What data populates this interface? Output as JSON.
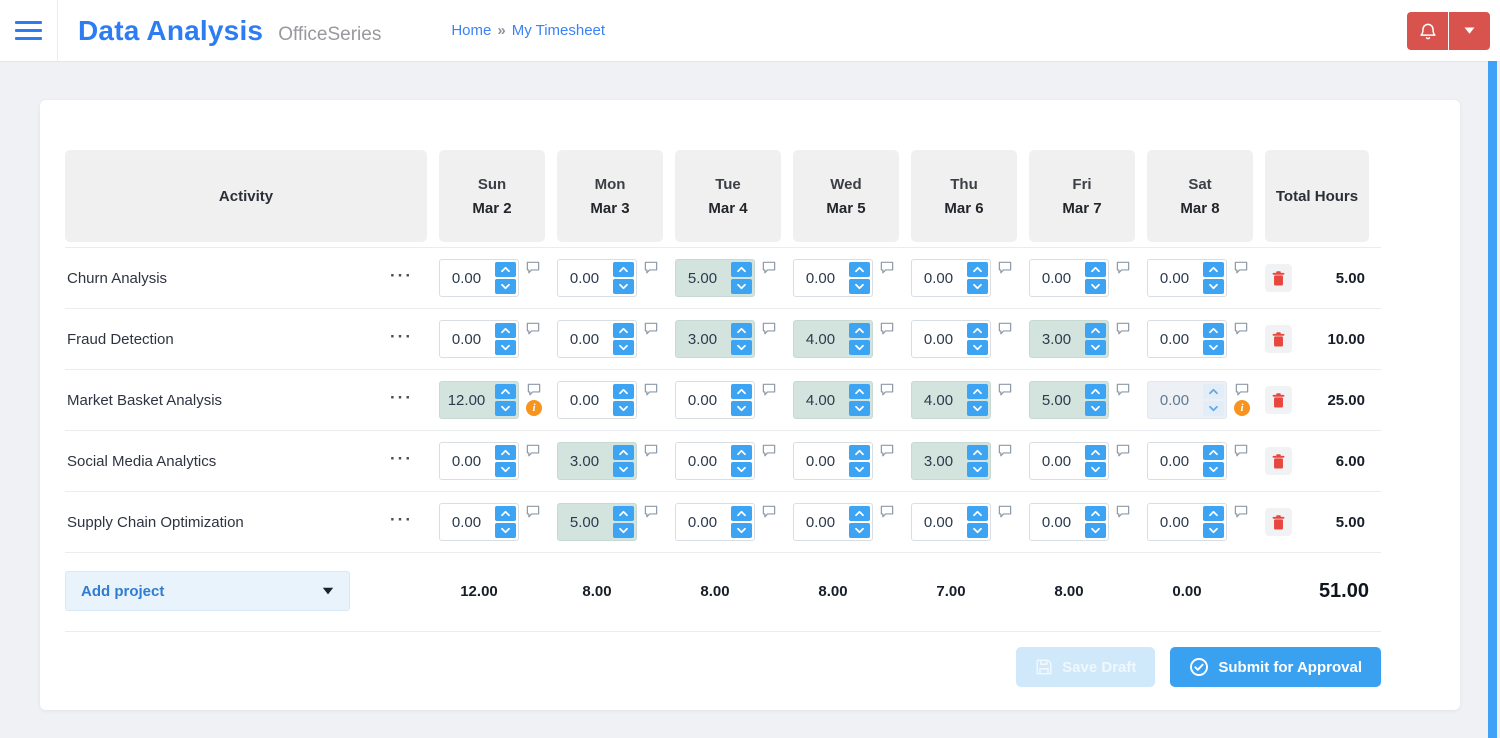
{
  "header": {
    "app_title": "Data Analysis",
    "suite_name": "OfficeSeries",
    "breadcrumb": {
      "home": "Home",
      "separator": "»",
      "current": "My Timesheet"
    }
  },
  "icons": {
    "menu": "hamburger-icon",
    "notifications": "bell-icon",
    "account_dropdown": "caret-down-icon",
    "spinner_up": "chevron-up-icon",
    "spinner_down": "chevron-down-icon",
    "comment": "speech-bubble-icon",
    "warning": "info-circle-icon",
    "delete": "trash-icon",
    "save": "floppy-disk-icon",
    "submit": "check-circle-icon"
  },
  "glyphs": {
    "row_menu": "···",
    "warning": "i"
  },
  "table": {
    "columns": {
      "activity": "Activity",
      "total": "Total Hours"
    },
    "days": [
      {
        "name": "Sun",
        "date": "Mar 2"
      },
      {
        "name": "Mon",
        "date": "Mar 3"
      },
      {
        "name": "Tue",
        "date": "Mar 4"
      },
      {
        "name": "Wed",
        "date": "Mar 5"
      },
      {
        "name": "Thu",
        "date": "Mar 6"
      },
      {
        "name": "Fri",
        "date": "Mar 7"
      },
      {
        "name": "Sat",
        "date": "Mar 8"
      }
    ],
    "rows": [
      {
        "activity": "Churn Analysis",
        "total": "5.00",
        "cells": [
          {
            "value": "0.00"
          },
          {
            "value": "0.00"
          },
          {
            "value": "5.00",
            "highlighted": true
          },
          {
            "value": "0.00"
          },
          {
            "value": "0.00"
          },
          {
            "value": "0.00"
          },
          {
            "value": "0.00"
          }
        ]
      },
      {
        "activity": "Fraud Detection",
        "total": "10.00",
        "cells": [
          {
            "value": "0.00"
          },
          {
            "value": "0.00"
          },
          {
            "value": "3.00",
            "highlighted": true
          },
          {
            "value": "4.00",
            "highlighted": true
          },
          {
            "value": "0.00"
          },
          {
            "value": "3.00",
            "highlighted": true
          },
          {
            "value": "0.00"
          }
        ]
      },
      {
        "activity": "Market Basket Analysis",
        "total": "25.00",
        "cells": [
          {
            "value": "12.00",
            "highlighted": true,
            "warning": true
          },
          {
            "value": "0.00"
          },
          {
            "value": "0.00"
          },
          {
            "value": "4.00",
            "highlighted": true
          },
          {
            "value": "4.00",
            "highlighted": true
          },
          {
            "value": "5.00",
            "highlighted": true
          },
          {
            "value": "0.00",
            "disabled": true,
            "warning": true
          }
        ]
      },
      {
        "activity": "Social Media Analytics",
        "total": "6.00",
        "cells": [
          {
            "value": "0.00"
          },
          {
            "value": "3.00",
            "highlighted": true
          },
          {
            "value": "0.00"
          },
          {
            "value": "0.00"
          },
          {
            "value": "3.00",
            "highlighted": true
          },
          {
            "value": "0.00"
          },
          {
            "value": "0.00"
          }
        ]
      },
      {
        "activity": "Supply Chain Optimization",
        "total": "5.00",
        "cells": [
          {
            "value": "0.00"
          },
          {
            "value": "5.00",
            "highlighted": true
          },
          {
            "value": "0.00"
          },
          {
            "value": "0.00"
          },
          {
            "value": "0.00"
          },
          {
            "value": "0.00"
          },
          {
            "value": "0.00"
          }
        ]
      }
    ],
    "footer": {
      "add_project_label": "Add project",
      "day_totals": [
        "12.00",
        "8.00",
        "8.00",
        "8.00",
        "7.00",
        "8.00",
        "0.00"
      ],
      "grand_total": "51.00"
    }
  },
  "actions": {
    "save_draft_label": "Save Draft",
    "submit_label": "Submit for Approval"
  },
  "colors": {
    "brand_blue": "#2d7cf2",
    "accent_blue": "#3ca4f2",
    "danger_red": "#d8534e",
    "trash_red": "#e8473f",
    "highlight_teal": "#d3e4de",
    "warning_orange": "#f7941e",
    "scrollbar_blue": "#3fa2f7"
  }
}
